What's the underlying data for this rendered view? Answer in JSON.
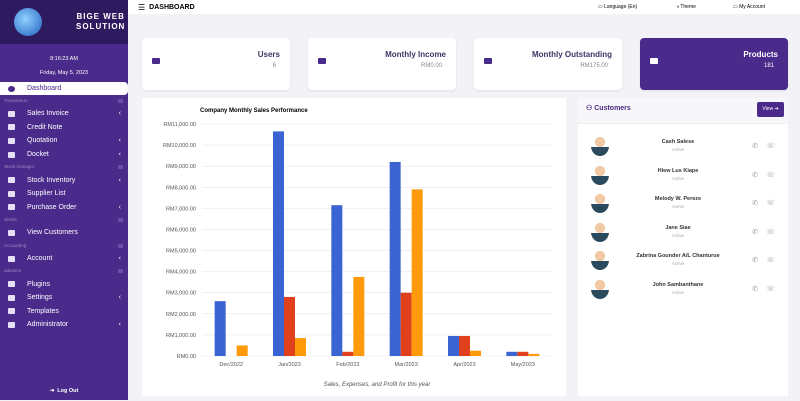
{
  "brand": {
    "name_line1": "BIGE WEB",
    "name_line2": "SOLUTION"
  },
  "clock": {
    "time": "8:16:23 AM",
    "date": "Friday, May 5, 2023"
  },
  "sidebar": {
    "dashboard": "Dashboard",
    "sections": [
      {
        "label": "Transaction",
        "items": [
          {
            "label": "Sales Invoice",
            "chev": true
          },
          {
            "label": "Credit Note",
            "chev": false
          },
          {
            "label": "Quotation",
            "chev": true
          },
          {
            "label": "Docket",
            "chev": true
          }
        ]
      },
      {
        "label": "Stock manager",
        "items": [
          {
            "label": "Stock Inventory",
            "chev": true
          },
          {
            "label": "Supplier List",
            "chev": false
          },
          {
            "label": "Purchase Order",
            "chev": true
          }
        ]
      },
      {
        "label": "clients",
        "items": [
          {
            "label": "View Customers",
            "chev": false
          }
        ]
      },
      {
        "label": "Accounting",
        "items": [
          {
            "label": "Account",
            "chev": true
          }
        ]
      },
      {
        "label": "advance",
        "items": [
          {
            "label": "Plugins",
            "chev": false
          },
          {
            "label": "Settings",
            "chev": true
          },
          {
            "label": "Templates",
            "chev": false
          },
          {
            "label": "Administrator",
            "chev": true
          }
        ]
      }
    ],
    "logout": "Log Out"
  },
  "topbar": {
    "title": "DASHBOARD",
    "language": "Language (En)",
    "theme": "Theme",
    "account": "My Account"
  },
  "cards": [
    {
      "label": "Users",
      "value": "6"
    },
    {
      "label": "Monthly Income",
      "value": "RM0.00"
    },
    {
      "label": "Monthly Outstanding",
      "value": "RM175.00"
    },
    {
      "label": "Products",
      "value": "181"
    }
  ],
  "customers": {
    "title": "Customers",
    "view": "View ➔",
    "list": [
      {
        "name": "Cash Salese",
        "status": "Active"
      },
      {
        "name": "Hiew Lus Kiape",
        "status": "Active"
      },
      {
        "name": "Melody W. Pereze",
        "status": "Active"
      },
      {
        "name": "Jane Siae",
        "status": "Active"
      },
      {
        "name": "Zabrina Gounder A/L Chanturue",
        "status": "Active"
      },
      {
        "name": "John Sambanthane",
        "status": "Active"
      }
    ]
  },
  "chart_data": {
    "type": "bar",
    "title": "Company Monthly Sales Performance",
    "xlabel": "Sales, Expenses, and Profit for this year",
    "ylabel": "",
    "categories": [
      "Dec/2022",
      "Jan/2023",
      "Feb/2023",
      "Mar/2023",
      "Apr/2023",
      "May/2023"
    ],
    "ylim": [
      0,
      11000
    ],
    "yticks": [
      "RM0.00",
      "RM1,000.00",
      "RM2,000.00",
      "RM3,000.00",
      "RM4,000.00",
      "RM5,000.00",
      "RM6,000.00",
      "RM7,000.00",
      "RM8,000.00",
      "RM9,000.00",
      "RM10,000.00",
      "RM11,000.00"
    ],
    "grid": true,
    "series": [
      {
        "color": "#3a64d1",
        "values": [
          2600,
          10650,
          7150,
          9200,
          950,
          200
        ]
      },
      {
        "color": "#e0401c",
        "values": [
          0,
          2800,
          200,
          3000,
          950,
          200
        ]
      },
      {
        "color": "#ff9a0a",
        "values": [
          500,
          850,
          3750,
          7900,
          250,
          100
        ]
      }
    ]
  }
}
